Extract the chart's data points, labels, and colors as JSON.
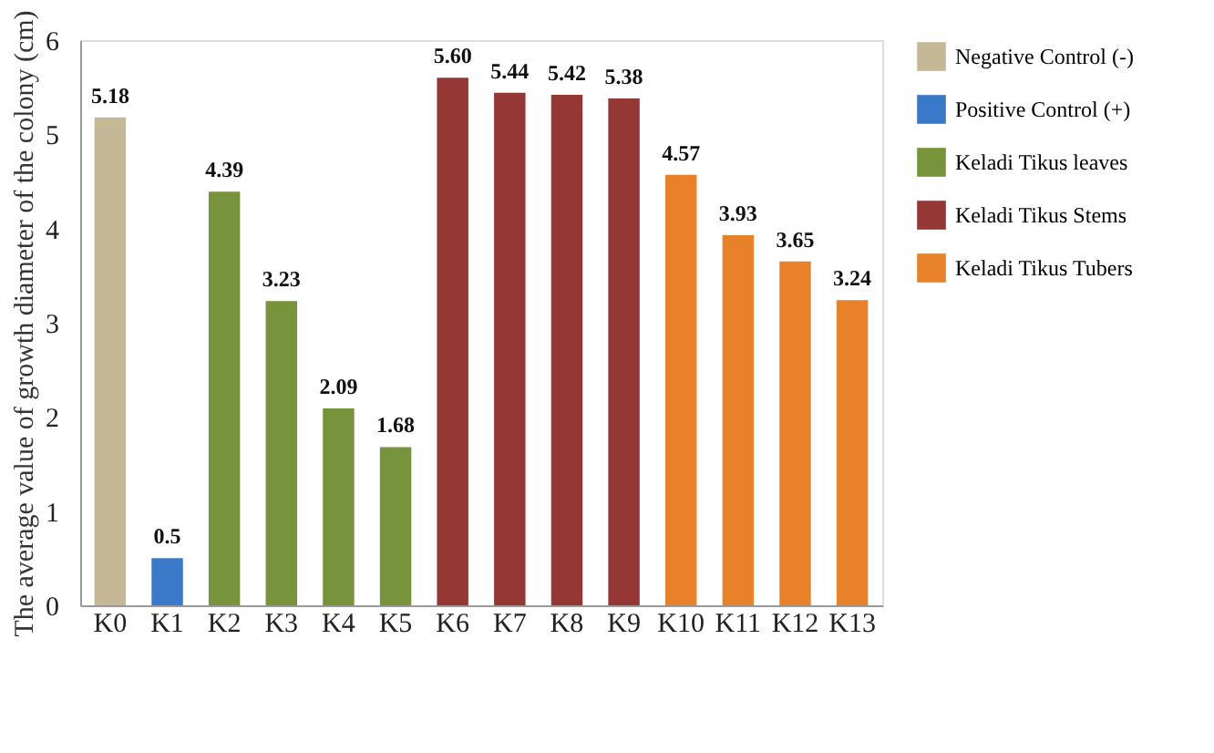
{
  "chart_data": {
    "type": "bar",
    "ylabel": "The average value of growth diameter of the colony (cm)",
    "categories": [
      "K0",
      "K1",
      "K2",
      "K3",
      "K4",
      "K5",
      "K6",
      "K7",
      "K8",
      "K9",
      "K10",
      "K11",
      "K12",
      "K13"
    ],
    "series": [
      {
        "name": "Negative Control (-)",
        "color": "#c4b896",
        "values": [
          5.18,
          null,
          null,
          null,
          null,
          null,
          null,
          null,
          null,
          null,
          null,
          null,
          null,
          null
        ],
        "value_labels": [
          "5.18",
          null,
          null,
          null,
          null,
          null,
          null,
          null,
          null,
          null,
          null,
          null,
          null,
          null
        ]
      },
      {
        "name": "Positive Control (+)",
        "color": "#3a78c8",
        "values": [
          null,
          0.5,
          null,
          null,
          null,
          null,
          null,
          null,
          null,
          null,
          null,
          null,
          null,
          null
        ],
        "value_labels": [
          null,
          "0.5",
          null,
          null,
          null,
          null,
          null,
          null,
          null,
          null,
          null,
          null,
          null,
          null
        ]
      },
      {
        "name": "Keladi Tikus leaves",
        "color": "#77933c",
        "values": [
          null,
          null,
          4.39,
          3.23,
          2.09,
          1.68,
          null,
          null,
          null,
          null,
          null,
          null,
          null,
          null
        ],
        "value_labels": [
          null,
          null,
          "4.39",
          "3.23",
          "2.09",
          "1.68",
          null,
          null,
          null,
          null,
          null,
          null,
          null,
          null
        ]
      },
      {
        "name": "Keladi Tikus Stems",
        "color": "#953735",
        "values": [
          null,
          null,
          null,
          null,
          null,
          null,
          5.6,
          5.44,
          5.42,
          5.38,
          null,
          null,
          null,
          null
        ],
        "value_labels": [
          null,
          null,
          null,
          null,
          null,
          null,
          "5.60",
          "5.44",
          "5.42",
          "5.38",
          null,
          null,
          null,
          null
        ]
      },
      {
        "name": "Keladi Tikus Tubers",
        "color": "#e8822a",
        "values": [
          null,
          null,
          null,
          null,
          null,
          null,
          null,
          null,
          null,
          null,
          4.57,
          3.93,
          3.65,
          3.24
        ],
        "value_labels": [
          null,
          null,
          null,
          null,
          null,
          null,
          null,
          null,
          null,
          null,
          "4.57",
          "3.93",
          "3.65",
          "3.24"
        ]
      }
    ],
    "ylim": [
      0,
      6
    ],
    "yticks": [
      0,
      1,
      2,
      3,
      4,
      5,
      6
    ],
    "grid": false,
    "legend": "right"
  }
}
